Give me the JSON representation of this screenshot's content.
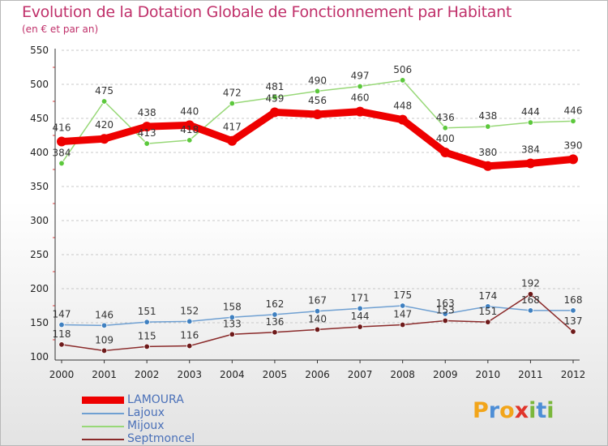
{
  "title": "Evolution de la Dotation Globale de Fonctionnement par Habitant",
  "subtitle": "(en € et par an)",
  "logo": {
    "letters": [
      "P",
      "r",
      "o",
      "x",
      "i",
      "t",
      "i"
    ],
    "colors": [
      "#f2a51a",
      "#4d8ed6",
      "#f2a51a",
      "#e0342b",
      "#7ab73c",
      "#4d8ed6",
      "#7ab73c"
    ]
  },
  "chart_data": {
    "type": "line",
    "title": "Evolution de la Dotation Globale de Fonctionnement par Habitant",
    "subtitle": "(en € et par an)",
    "xlabel": "",
    "ylabel": "",
    "x": [
      "2000",
      "2001",
      "2002",
      "2003",
      "2004",
      "2005",
      "2006",
      "2007",
      "2008",
      "2009",
      "2010",
      "2011",
      "2012"
    ],
    "ylim": [
      100,
      550
    ],
    "yticks": [
      "100",
      "150",
      "200",
      "250",
      "300",
      "350",
      "400",
      "450",
      "500",
      "550"
    ],
    "grid": "dashed horizontal",
    "legend_position": "bottom-left",
    "series": [
      {
        "name": "LAMOURA",
        "color": "#ee0000",
        "emphasis": "thick",
        "values": [
          416,
          420,
          438,
          440,
          417,
          459,
          456,
          460,
          448,
          400,
          380,
          384,
          390
        ],
        "labels": [
          "416",
          "420",
          "438",
          "440",
          "417",
          "459",
          "456",
          "460",
          "448",
          "400",
          "380",
          "384",
          "390"
        ]
      },
      {
        "name": "Lajoux",
        "color": "#6fa0d2",
        "marker": "#3f80c0",
        "values": [
          147,
          146,
          151,
          152,
          158,
          162,
          167,
          171,
          175,
          163,
          174,
          168,
          168
        ],
        "labels": [
          "147",
          "146",
          "151",
          "152",
          "158",
          "162",
          "167",
          "171",
          "175",
          "163",
          "174",
          "168",
          "168"
        ]
      },
      {
        "name": "Mijoux",
        "color": "#98d878",
        "marker": "#5cc83c",
        "values": [
          384,
          475,
          413,
          418,
          472,
          481,
          490,
          497,
          506,
          436,
          438,
          444,
          446
        ],
        "labels": [
          "384",
          "475",
          "413",
          "418",
          "472",
          "481",
          "490",
          "497",
          "506",
          "436",
          "438",
          "444",
          "446"
        ]
      },
      {
        "name": "Septmoncel",
        "color": "#8a2a2a",
        "marker": "#6e1a1a",
        "values": [
          118,
          109,
          115,
          116,
          133,
          136,
          140,
          144,
          147,
          153,
          151,
          192,
          137
        ],
        "labels": [
          "118",
          "109",
          "115",
          "116",
          "133",
          "136",
          "140",
          "144",
          "147",
          "153",
          "151",
          "192",
          "137"
        ]
      }
    ]
  }
}
